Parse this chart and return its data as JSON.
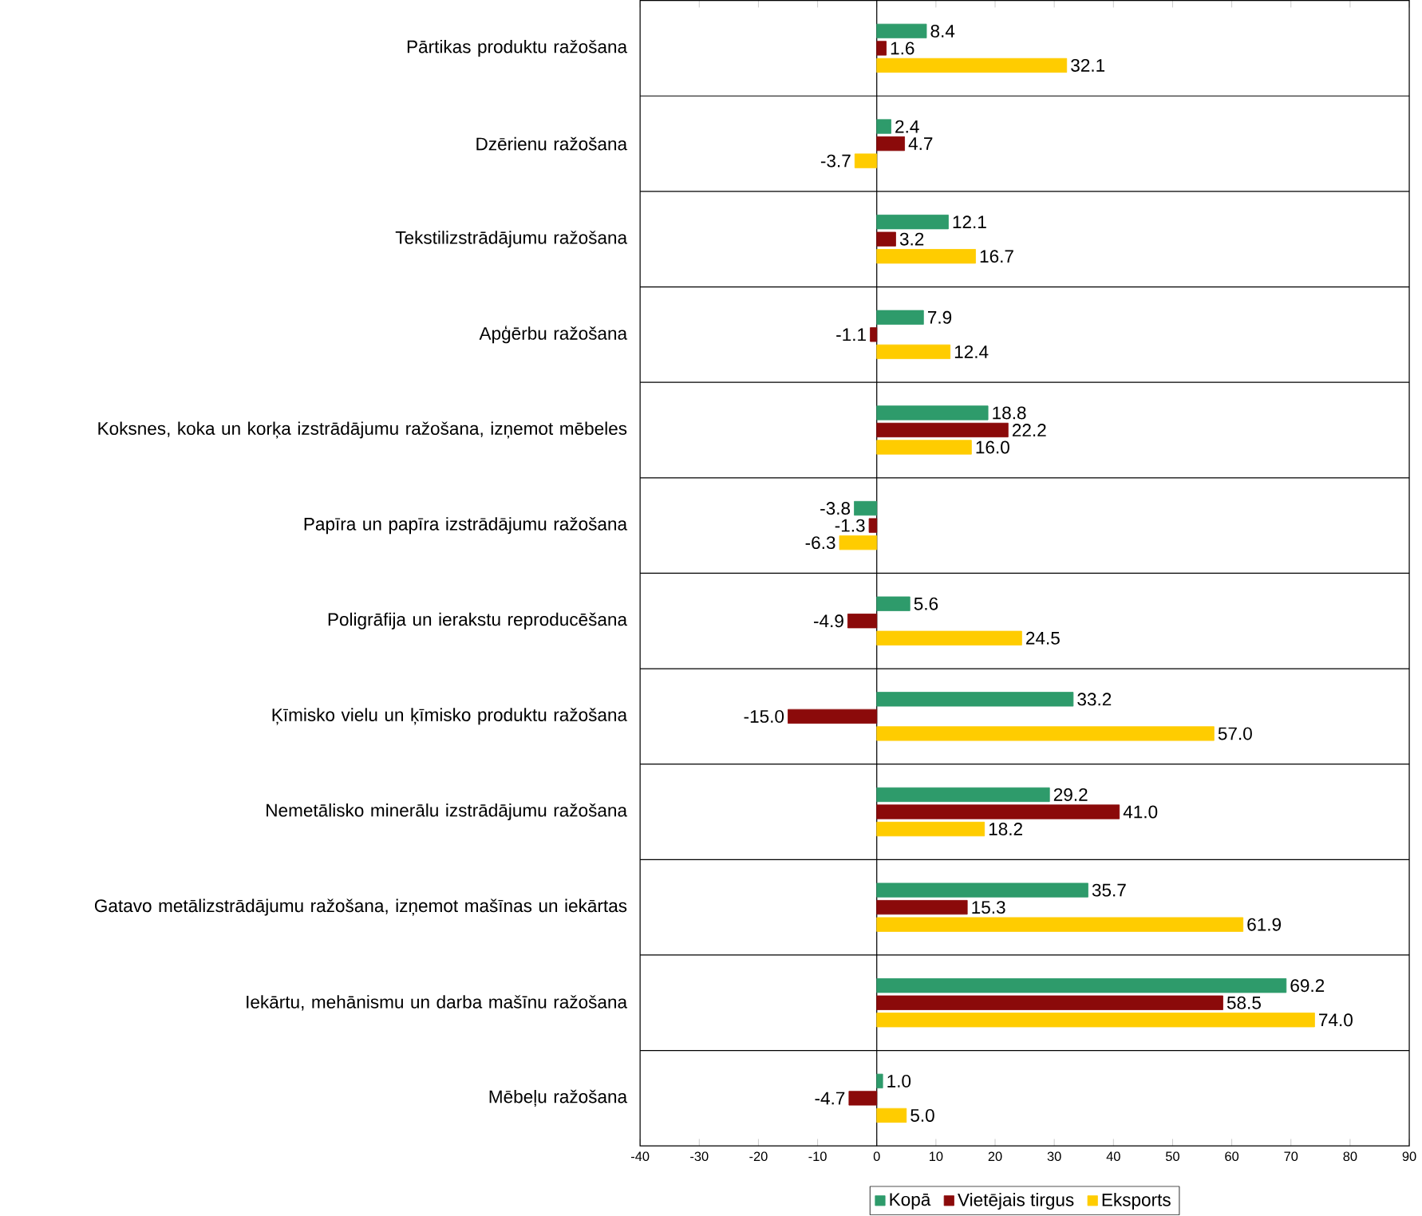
{
  "chart_data": {
    "type": "bar",
    "orientation": "horizontal",
    "categories": [
      "Pārtikas produktu ražošana",
      "Dzērienu ražošana",
      "Tekstilizstrādājumu ražošana",
      "Apģērbu ražošana",
      "Koksnes, koka un korķa izstrādājumu ražošana, izņemot mēbeles",
      "Papīra un papīra izstrādājumu ražošana",
      "Poligrāfija un ierakstu reproducēšana",
      "Ķīmisko vielu un ķīmisko produktu ražošana",
      "Nemetālisko minerālu izstrādājumu ražošana",
      "Gatavo metālizstrādājumu ražošana, izņemot mašīnas un iekārtas",
      "Iekārtu, mehānismu un darba mašīnu ražošana",
      "Mēbeļu ražošana"
    ],
    "series": [
      {
        "name": "Kopā",
        "color": "#2e9b6b",
        "values": [
          8.4,
          2.4,
          12.1,
          7.9,
          18.8,
          -3.8,
          5.6,
          33.2,
          29.2,
          35.7,
          69.2,
          1.0
        ],
        "value_labels": [
          "8.4",
          "2.4",
          "12.1",
          "7.9",
          "18.8",
          "-3.8",
          "5.6",
          "33.2",
          "29.2",
          "35.7",
          "69.2",
          "1.0"
        ]
      },
      {
        "name": "Vietējais tirgus",
        "color": "#8b0a0a",
        "values": [
          1.6,
          4.7,
          3.2,
          -1.1,
          22.2,
          -1.3,
          -4.9,
          -15.0,
          41.0,
          15.3,
          58.5,
          -4.7
        ],
        "value_labels": [
          "1.6",
          "4.7",
          "3.2",
          "-1.1",
          "22.2",
          "-1.3",
          "-4.9",
          "-15.0",
          "41.0",
          "15.3",
          "58.5",
          "-4.7"
        ]
      },
      {
        "name": "Eksports",
        "color": "#ffcc00",
        "values": [
          32.1,
          -3.7,
          16.7,
          12.4,
          16.0,
          -6.3,
          24.5,
          57.0,
          18.2,
          61.9,
          74.0,
          5.0
        ],
        "value_labels": [
          "32.1",
          "-3.7",
          "16.7",
          "12.4",
          "16.0",
          "-6.3",
          "24.5",
          "57.0",
          "18.2",
          "61.9",
          "74.0",
          "5.0"
        ]
      }
    ],
    "xlim": [
      -40,
      90
    ],
    "xticks": [
      -40,
      -30,
      -20,
      -10,
      0,
      10,
      20,
      30,
      40,
      50,
      60,
      70,
      80,
      90
    ],
    "ref_lines": [
      {
        "axis": "x",
        "value": 0
      }
    ],
    "grid": "y",
    "legend": "bottom"
  }
}
